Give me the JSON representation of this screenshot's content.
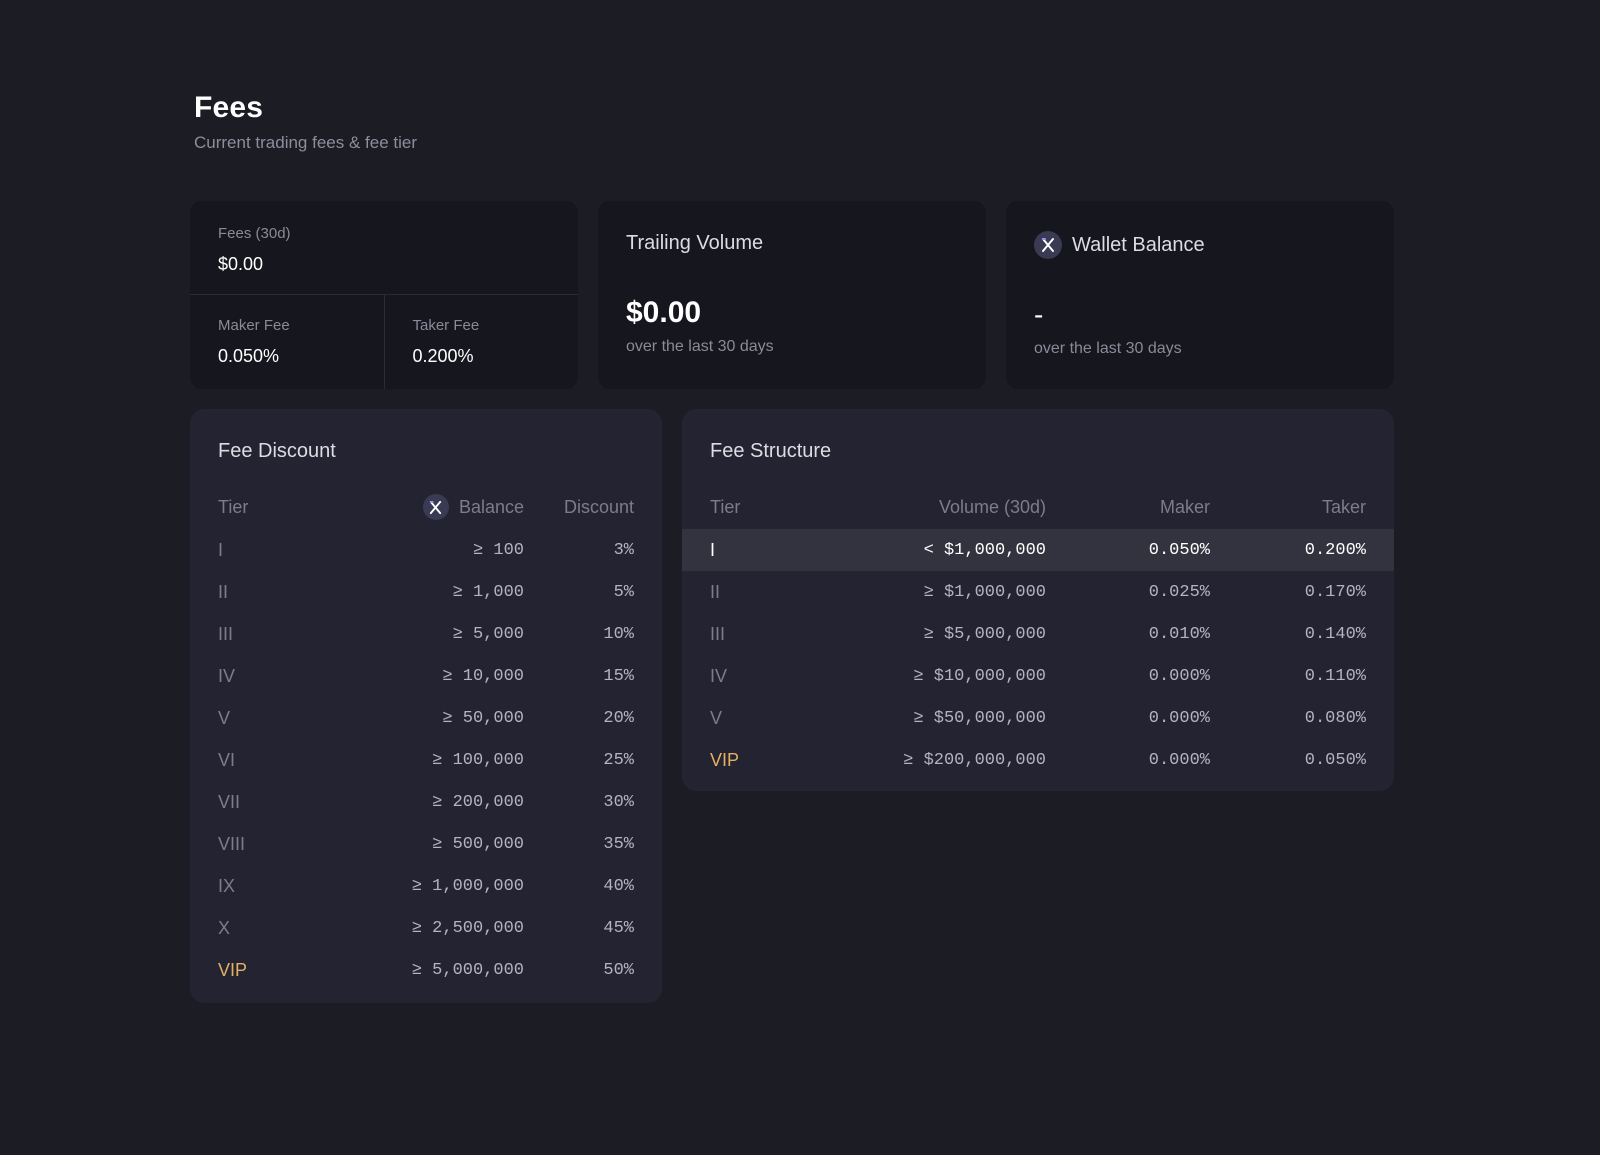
{
  "page": {
    "title": "Fees",
    "subtitle": "Current trading fees & fee tier"
  },
  "fees_card": {
    "fees_label": "Fees (30d)",
    "fees_value": "$0.00",
    "maker_label": "Maker Fee",
    "maker_value": "0.050%",
    "taker_label": "Taker Fee",
    "taker_value": "0.200%"
  },
  "volume_card": {
    "title": "Trailing Volume",
    "value": "$0.00",
    "sub": "over the last 30 days"
  },
  "wallet_card": {
    "title": "Wallet Balance",
    "value": "-",
    "sub": "over the last 30 days",
    "icon": "x-token-icon"
  },
  "fee_discount": {
    "title": "Fee Discount",
    "headers": {
      "tier": "Tier",
      "balance": "Balance",
      "discount": "Discount"
    },
    "rows": [
      {
        "tier": "I",
        "balance": "≥ 100",
        "discount": "3%"
      },
      {
        "tier": "II",
        "balance": "≥ 1,000",
        "discount": "5%"
      },
      {
        "tier": "III",
        "balance": "≥ 5,000",
        "discount": "10%"
      },
      {
        "tier": "IV",
        "balance": "≥ 10,000",
        "discount": "15%"
      },
      {
        "tier": "V",
        "balance": "≥ 50,000",
        "discount": "20%"
      },
      {
        "tier": "VI",
        "balance": "≥ 100,000",
        "discount": "25%"
      },
      {
        "tier": "VII",
        "balance": "≥ 200,000",
        "discount": "30%"
      },
      {
        "tier": "VIII",
        "balance": "≥ 500,000",
        "discount": "35%"
      },
      {
        "tier": "IX",
        "balance": "≥ 1,000,000",
        "discount": "40%"
      },
      {
        "tier": "X",
        "balance": "≥ 2,500,000",
        "discount": "45%"
      },
      {
        "tier": "VIP",
        "balance": "≥ 5,000,000",
        "discount": "50%"
      }
    ]
  },
  "fee_structure": {
    "title": "Fee Structure",
    "headers": {
      "tier": "Tier",
      "volume": "Volume (30d)",
      "maker": "Maker",
      "taker": "Taker"
    },
    "rows": [
      {
        "tier": "I",
        "volume": "< $1,000,000",
        "maker": "0.050%",
        "taker": "0.200%"
      },
      {
        "tier": "II",
        "volume": "≥ $1,000,000",
        "maker": "0.025%",
        "taker": "0.170%"
      },
      {
        "tier": "III",
        "volume": "≥ $5,000,000",
        "maker": "0.010%",
        "taker": "0.140%"
      },
      {
        "tier": "IV",
        "volume": "≥ $10,000,000",
        "maker": "0.000%",
        "taker": "0.110%"
      },
      {
        "tier": "V",
        "volume": "≥ $50,000,000",
        "maker": "0.000%",
        "taker": "0.080%"
      },
      {
        "tier": "VIP",
        "volume": "≥ $200,000,000",
        "maker": "0.000%",
        "taker": "0.050%"
      }
    ]
  },
  "colors": {
    "background": "#1c1c25",
    "card": "#16161e",
    "panel": "#232331",
    "vip": "#e3b061",
    "highlight_row": "#33333f"
  }
}
